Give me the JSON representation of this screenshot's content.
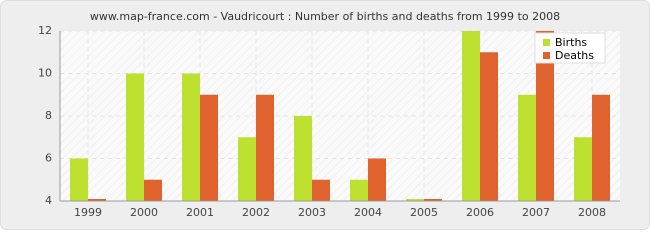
{
  "chart_data": {
    "type": "bar",
    "title": "www.map-france.com - Vaudricourt : Number of births and deaths from 1999 to 2008",
    "categories": [
      "1999",
      "2000",
      "2001",
      "2002",
      "2003",
      "2004",
      "2005",
      "2006",
      "2007",
      "2008"
    ],
    "series": [
      {
        "name": "Births",
        "color": "#bde031",
        "values": [
          6,
          10,
          10,
          7,
          8,
          5,
          4,
          12,
          9,
          7
        ]
      },
      {
        "name": "Deaths",
        "color": "#e0622e",
        "values": [
          4,
          5,
          9,
          9,
          5,
          6,
          4,
          11,
          12,
          9
        ]
      }
    ],
    "ylim": [
      4,
      12
    ],
    "yticks": [
      4,
      6,
      8,
      10,
      12
    ],
    "grid": true,
    "legend": "top-right"
  }
}
